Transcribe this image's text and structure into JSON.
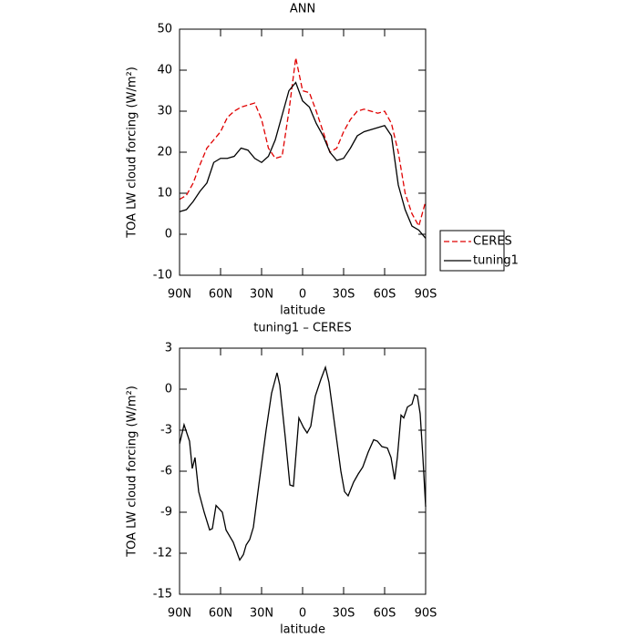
{
  "chart_data": [
    {
      "type": "line",
      "title": "ANN",
      "x_label": "latitude",
      "y_label": "TOA LW cloud forcing (W/m²)",
      "x": [
        90,
        85,
        80,
        75,
        70,
        65,
        60,
        55,
        50,
        45,
        40,
        35,
        30,
        25,
        20,
        15,
        10,
        5,
        0,
        -5,
        -10,
        -15,
        -20,
        -25,
        -30,
        -35,
        -40,
        -45,
        -50,
        -55,
        -60,
        -65,
        -70,
        -75,
        -80,
        -85,
        -90
      ],
      "series": [
        {
          "name": "CERES",
          "color": "#e00000",
          "linestyle": "dashed",
          "values": [
            8.5,
            9.5,
            12.5,
            17,
            21,
            23,
            25,
            28.5,
            30,
            31,
            31.5,
            32,
            28,
            21,
            18.5,
            19,
            30,
            43,
            35,
            34.5,
            30,
            25,
            20,
            21,
            25,
            28,
            30,
            30.5,
            30,
            29.5,
            30,
            27,
            20,
            10,
            5,
            2,
            8
          ]
        },
        {
          "name": "tuning1",
          "color": "#000000",
          "linestyle": "solid",
          "values": [
            5.5,
            6,
            8,
            10.5,
            12.5,
            17.5,
            18.5,
            18.5,
            19,
            21,
            20.5,
            18.5,
            17.5,
            19,
            23,
            29,
            35,
            37,
            32.5,
            31,
            27,
            24,
            20,
            18,
            18.5,
            21,
            24,
            25,
            25.5,
            26,
            26.5,
            24,
            12,
            6,
            2,
            1,
            -1
          ]
        }
      ],
      "xlim": [
        90,
        -90
      ],
      "xticks": [
        {
          "value": 90,
          "label": "90N"
        },
        {
          "value": 60,
          "label": "60N"
        },
        {
          "value": 30,
          "label": "30N"
        },
        0,
        {
          "value": -30,
          "label": "30S"
        },
        {
          "value": -60,
          "label": "60S"
        },
        {
          "value": -90,
          "label": "90S"
        }
      ],
      "ylim": [
        -10,
        50
      ],
      "yticks": [
        -10,
        0,
        10,
        20,
        30,
        40,
        50
      ],
      "legend": "outside-right"
    },
    {
      "type": "line",
      "title": "tuning1 – CERES",
      "x_label": "latitude",
      "y_label": "TOA LW cloud forcing (W/m²)",
      "x": [
        90,
        86.7,
        82.7,
        80.7,
        78.7,
        76,
        72,
        68,
        66,
        63.3,
        58.7,
        56,
        50.7,
        46,
        43.3,
        41.3,
        38.7,
        36,
        32,
        26.7,
        22.7,
        18.7,
        16.7,
        12.7,
        9.3,
        6.7,
        2.7,
        -0.7,
        -3.3,
        -6,
        -9.3,
        -13.3,
        -16.7,
        -19.3,
        -24,
        -28,
        -30.7,
        -33.3,
        -37.3,
        -40.7,
        -44,
        -48,
        -52,
        -54.7,
        -58,
        -62,
        -64.7,
        -67.3,
        -69.3,
        -72,
        -74,
        -76.7,
        -80,
        -82,
        -84,
        -86,
        -88,
        -90
      ],
      "series": [
        {
          "name": "tuning1 – CERES",
          "color": "#000000",
          "linestyle": "solid",
          "values": [
            -4,
            -2.6,
            -3.8,
            -5.8,
            -5,
            -7.5,
            -9,
            -10.3,
            -10.2,
            -8.5,
            -9,
            -10.3,
            -11.2,
            -12.5,
            -12.1,
            -11.4,
            -11,
            -10.1,
            -7,
            -3,
            -0.3,
            1.2,
            0.3,
            -3.5,
            -7,
            -7.1,
            -2.1,
            -2.8,
            -3.2,
            -2.7,
            -0.5,
            0.7,
            1.6,
            0.5,
            -3,
            -6,
            -7.5,
            -7.8,
            -6.8,
            -6.2,
            -5.7,
            -4.6,
            -3.7,
            -3.8,
            -4.2,
            -4.3,
            -5,
            -6.6,
            -5,
            -1.9,
            -2.1,
            -1.3,
            -1.1,
            -0.4,
            -0.5,
            -1.8,
            -5,
            -8.6
          ]
        }
      ],
      "xlim": [
        90,
        -90
      ],
      "xticks": [
        {
          "value": 90,
          "label": "90N"
        },
        {
          "value": 60,
          "label": "60N"
        },
        {
          "value": 30,
          "label": "30N"
        },
        0,
        {
          "value": -30,
          "label": "30S"
        },
        {
          "value": -60,
          "label": "60S"
        },
        {
          "value": -90,
          "label": "90S"
        }
      ],
      "ylim": [
        -15,
        3
      ],
      "yticks": [
        -15,
        -12,
        -9,
        -6,
        -3,
        0,
        3
      ]
    }
  ]
}
